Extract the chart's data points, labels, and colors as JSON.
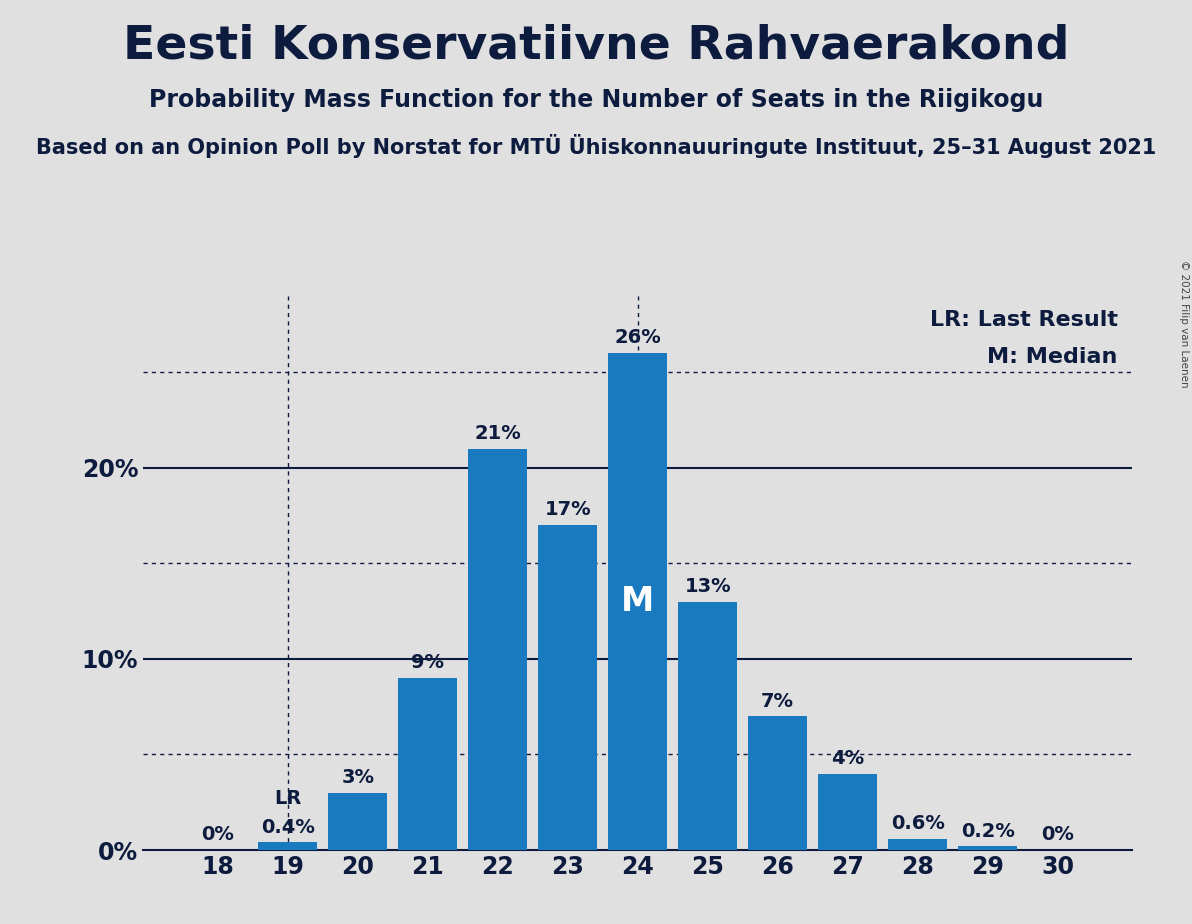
{
  "title": "Eesti Konservatiivne Rahvaerakond",
  "subtitle": "Probability Mass Function for the Number of Seats in the Riigikogu",
  "source_line": "Based on an Opinion Poll by Norstat for MTÜ Ühiskonnauuringute Instituut, 25–31 August 2021",
  "copyright_text": "© 2021 Filip van Laenen",
  "categories": [
    18,
    19,
    20,
    21,
    22,
    23,
    24,
    25,
    26,
    27,
    28,
    29,
    30
  ],
  "values": [
    0.0,
    0.4,
    3.0,
    9.0,
    21.0,
    17.0,
    26.0,
    13.0,
    7.0,
    4.0,
    0.6,
    0.2,
    0.0
  ],
  "bar_color": "#1a7abf",
  "background_color": "#e0e0e0",
  "text_color": "#0d1b3e",
  "title_fontsize": 34,
  "subtitle_fontsize": 17,
  "source_fontsize": 15,
  "label_fontsize": 14,
  "tick_fontsize": 17,
  "ytick_labels": [
    "0%",
    "10%",
    "20%"
  ],
  "ytick_values": [
    0,
    10,
    20
  ],
  "ylim": [
    0,
    29
  ],
  "lr_seat": 19,
  "median_seat": 24,
  "dotted_line_values": [
    5,
    15,
    25
  ],
  "solid_line_values": [
    10,
    20
  ],
  "legend_lr": "LR: Last Result",
  "legend_m": "M: Median"
}
